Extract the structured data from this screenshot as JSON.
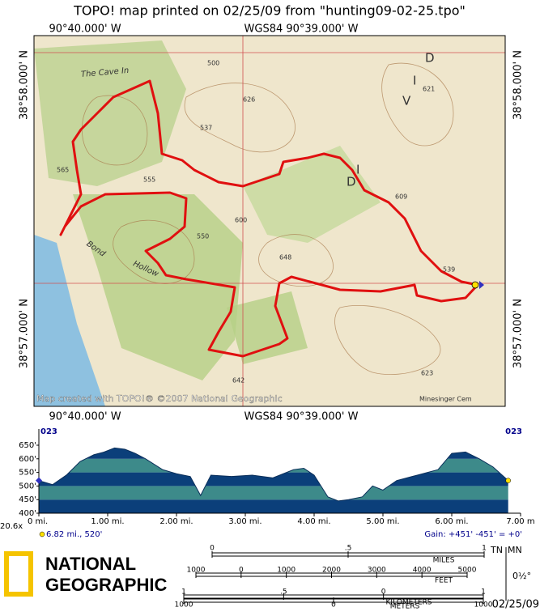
{
  "header": {
    "title": "TOPO! map printed on 02/25/09 from \"hunting09-02-25.tpo\""
  },
  "map": {
    "top_left": "90°40.000' W",
    "top_center": "WGS84 90°39.000' W",
    "bottom_left": "90°40.000' W",
    "bottom_center": "WGS84 90°39.000' W",
    "left_top": "38°58.000' N",
    "left_bottom": "38°57.000' N",
    "right_top": "38°58.000' N",
    "right_bottom": "38°57.000' N",
    "labels": [
      "The Cave In",
      "Bond",
      "Hollow",
      "D",
      "I",
      "V",
      "I",
      "D",
      "626",
      "537",
      "565",
      "555",
      "648",
      "609",
      "621",
      "539",
      "623",
      "642",
      "600",
      "550",
      "500",
      "Minesinger Cem"
    ],
    "credit": "Map created with TOPO!® ©2007 National Geographic"
  },
  "profile": {
    "start_label": "023",
    "end_label": "023",
    "zoom": "20.6x",
    "cursor_label": "6.82 mi., 520'",
    "gain": "Gain: +451' -451' = +0'",
    "chart_data": {
      "type": "area",
      "x": [
        0,
        0.2,
        0.4,
        0.6,
        0.8,
        0.95,
        1.1,
        1.25,
        1.4,
        1.55,
        1.8,
        2.0,
        2.2,
        2.35,
        2.5,
        2.8,
        3.1,
        3.4,
        3.7,
        3.85,
        4.0,
        4.2,
        4.35,
        4.5,
        4.7,
        4.85,
        5.0,
        5.2,
        5.5,
        5.8,
        6.0,
        6.2,
        6.4,
        6.6,
        6.82
      ],
      "values": [
        520,
        505,
        540,
        590,
        615,
        625,
        640,
        635,
        620,
        600,
        560,
        545,
        535,
        465,
        540,
        535,
        540,
        530,
        560,
        565,
        540,
        460,
        445,
        450,
        460,
        500,
        485,
        520,
        540,
        560,
        620,
        625,
        600,
        570,
        520
      ],
      "xlim": [
        0,
        7
      ],
      "ylim": [
        400,
        650
      ],
      "xticks": [
        {
          "value": 0,
          "label": "0 mi."
        },
        {
          "value": 1,
          "label": "1.00 mi."
        },
        {
          "value": 2,
          "label": "2.00 mi."
        },
        {
          "value": 3,
          "label": "3.00 mi."
        },
        {
          "value": 4,
          "label": "4.00 mi."
        },
        {
          "value": 5,
          "label": "5.00 mi."
        },
        {
          "value": 6,
          "label": "6.00 mi."
        },
        {
          "value": 7,
          "label": "7.00 m"
        }
      ],
      "yticks": [
        {
          "value": 400,
          "label": "400'"
        },
        {
          "value": 450,
          "label": "450'"
        },
        {
          "value": 500,
          "label": "500'"
        },
        {
          "value": 550,
          "label": "550'"
        },
        {
          "value": 600,
          "label": "600'"
        },
        {
          "value": 650,
          "label": "650'"
        }
      ],
      "band_colors": [
        "#0b3f7a",
        "#3d8a8a"
      ]
    }
  },
  "logo": {
    "line1": "NATIONAL",
    "line2": "GEOGRAPHIC"
  },
  "scales": {
    "miles": [
      "0",
      ".5",
      "1"
    ],
    "miles_unit": "MILES",
    "feet": [
      "1000",
      "0",
      "1000",
      "2000",
      "3000",
      "4000",
      "5000"
    ],
    "feet_unit": "FEET",
    "km": [
      "1",
      ".5",
      "0",
      "1"
    ],
    "km_unit": "KILOMETERS",
    "meters": [
      "1000",
      "0",
      "1000"
    ],
    "meters_unit": "METERS",
    "tn": "TN",
    "mn": "MN",
    "declination": "0½°",
    "date": "02/25/09"
  }
}
